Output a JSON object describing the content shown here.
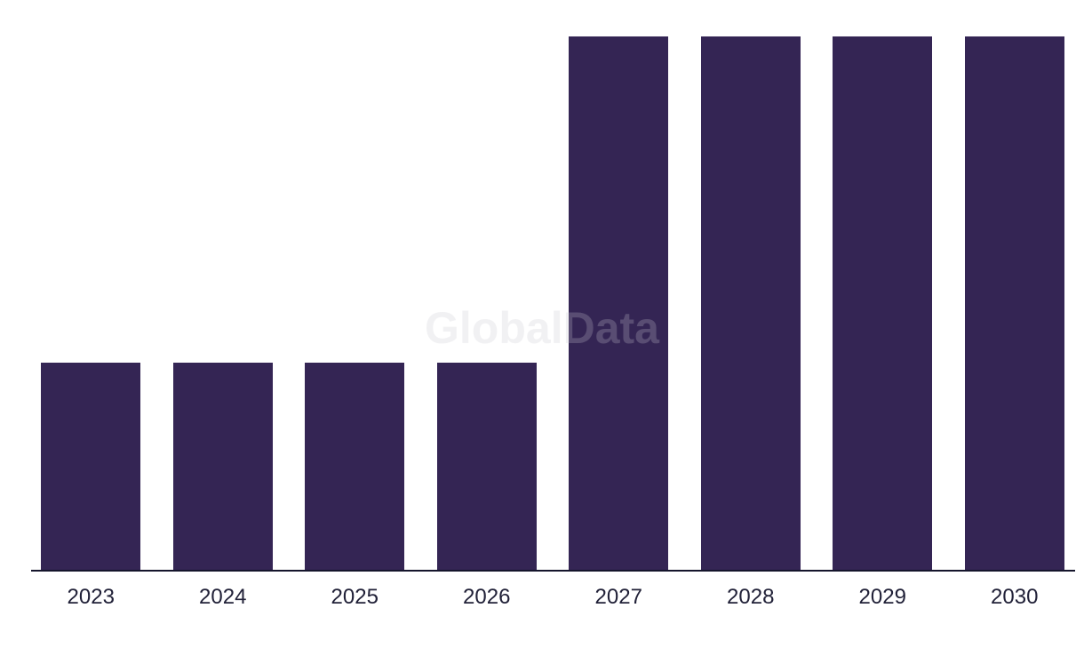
{
  "watermark": {
    "text": "GlobalData"
  },
  "colors": {
    "background": "#ffffff",
    "bar": "#342554",
    "axis": "#15152c",
    "label": "#212138",
    "watermark": "rgba(200,200,206,0.25)"
  },
  "chart_data": {
    "type": "bar",
    "categories": [
      "2023",
      "2024",
      "2025",
      "2026",
      "2027",
      "2028",
      "2029",
      "2030"
    ],
    "values": [
      38.8,
      38.8,
      38.8,
      38.8,
      100,
      100,
      100,
      100
    ],
    "title": "",
    "xlabel": "",
    "ylabel": "",
    "ylim": [
      0,
      100
    ],
    "value_unit": "relative-height-percent-no-y-axis-shown",
    "grid": false,
    "legend": false,
    "bar_color": "#342554",
    "watermark_text": "GlobalData"
  }
}
